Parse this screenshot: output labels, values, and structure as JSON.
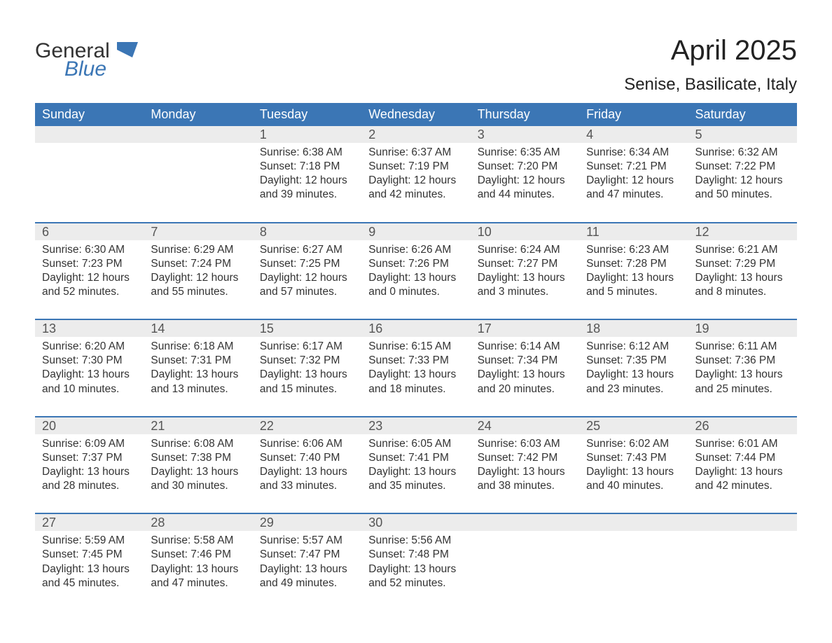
{
  "brand": {
    "word1": "General",
    "word2": "Blue",
    "icon_color": "#3b76b5"
  },
  "title": "April 2025",
  "subtitle": "Senise, Basilicate, Italy",
  "colors": {
    "header_bg": "#3b76b5",
    "header_text": "#ffffff",
    "stripe_bg": "#ececec",
    "text": "#333333",
    "rule": "#3b76b5",
    "page_bg": "#ffffff"
  },
  "fonts": {
    "family": "Arial, Helvetica, sans-serif",
    "title_size_pt": 30,
    "subtitle_size_pt": 18,
    "dayhead_size_pt": 14,
    "daynum_size_pt": 14,
    "body_size_pt": 12
  },
  "day_headers": [
    "Sunday",
    "Monday",
    "Tuesday",
    "Wednesday",
    "Thursday",
    "Friday",
    "Saturday"
  ],
  "weeks": [
    [
      null,
      null,
      {
        "n": "1",
        "sunrise": "6:38 AM",
        "sunset": "7:18 PM",
        "daylight_h": 12,
        "daylight_m": 39
      },
      {
        "n": "2",
        "sunrise": "6:37 AM",
        "sunset": "7:19 PM",
        "daylight_h": 12,
        "daylight_m": 42
      },
      {
        "n": "3",
        "sunrise": "6:35 AM",
        "sunset": "7:20 PM",
        "daylight_h": 12,
        "daylight_m": 44
      },
      {
        "n": "4",
        "sunrise": "6:34 AM",
        "sunset": "7:21 PM",
        "daylight_h": 12,
        "daylight_m": 47
      },
      {
        "n": "5",
        "sunrise": "6:32 AM",
        "sunset": "7:22 PM",
        "daylight_h": 12,
        "daylight_m": 50
      }
    ],
    [
      {
        "n": "6",
        "sunrise": "6:30 AM",
        "sunset": "7:23 PM",
        "daylight_h": 12,
        "daylight_m": 52
      },
      {
        "n": "7",
        "sunrise": "6:29 AM",
        "sunset": "7:24 PM",
        "daylight_h": 12,
        "daylight_m": 55
      },
      {
        "n": "8",
        "sunrise": "6:27 AM",
        "sunset": "7:25 PM",
        "daylight_h": 12,
        "daylight_m": 57
      },
      {
        "n": "9",
        "sunrise": "6:26 AM",
        "sunset": "7:26 PM",
        "daylight_h": 13,
        "daylight_m": 0
      },
      {
        "n": "10",
        "sunrise": "6:24 AM",
        "sunset": "7:27 PM",
        "daylight_h": 13,
        "daylight_m": 3
      },
      {
        "n": "11",
        "sunrise": "6:23 AM",
        "sunset": "7:28 PM",
        "daylight_h": 13,
        "daylight_m": 5
      },
      {
        "n": "12",
        "sunrise": "6:21 AM",
        "sunset": "7:29 PM",
        "daylight_h": 13,
        "daylight_m": 8
      }
    ],
    [
      {
        "n": "13",
        "sunrise": "6:20 AM",
        "sunset": "7:30 PM",
        "daylight_h": 13,
        "daylight_m": 10
      },
      {
        "n": "14",
        "sunrise": "6:18 AM",
        "sunset": "7:31 PM",
        "daylight_h": 13,
        "daylight_m": 13
      },
      {
        "n": "15",
        "sunrise": "6:17 AM",
        "sunset": "7:32 PM",
        "daylight_h": 13,
        "daylight_m": 15
      },
      {
        "n": "16",
        "sunrise": "6:15 AM",
        "sunset": "7:33 PM",
        "daylight_h": 13,
        "daylight_m": 18
      },
      {
        "n": "17",
        "sunrise": "6:14 AM",
        "sunset": "7:34 PM",
        "daylight_h": 13,
        "daylight_m": 20
      },
      {
        "n": "18",
        "sunrise": "6:12 AM",
        "sunset": "7:35 PM",
        "daylight_h": 13,
        "daylight_m": 23
      },
      {
        "n": "19",
        "sunrise": "6:11 AM",
        "sunset": "7:36 PM",
        "daylight_h": 13,
        "daylight_m": 25
      }
    ],
    [
      {
        "n": "20",
        "sunrise": "6:09 AM",
        "sunset": "7:37 PM",
        "daylight_h": 13,
        "daylight_m": 28
      },
      {
        "n": "21",
        "sunrise": "6:08 AM",
        "sunset": "7:38 PM",
        "daylight_h": 13,
        "daylight_m": 30
      },
      {
        "n": "22",
        "sunrise": "6:06 AM",
        "sunset": "7:40 PM",
        "daylight_h": 13,
        "daylight_m": 33
      },
      {
        "n": "23",
        "sunrise": "6:05 AM",
        "sunset": "7:41 PM",
        "daylight_h": 13,
        "daylight_m": 35
      },
      {
        "n": "24",
        "sunrise": "6:03 AM",
        "sunset": "7:42 PM",
        "daylight_h": 13,
        "daylight_m": 38
      },
      {
        "n": "25",
        "sunrise": "6:02 AM",
        "sunset": "7:43 PM",
        "daylight_h": 13,
        "daylight_m": 40
      },
      {
        "n": "26",
        "sunrise": "6:01 AM",
        "sunset": "7:44 PM",
        "daylight_h": 13,
        "daylight_m": 42
      }
    ],
    [
      {
        "n": "27",
        "sunrise": "5:59 AM",
        "sunset": "7:45 PM",
        "daylight_h": 13,
        "daylight_m": 45
      },
      {
        "n": "28",
        "sunrise": "5:58 AM",
        "sunset": "7:46 PM",
        "daylight_h": 13,
        "daylight_m": 47
      },
      {
        "n": "29",
        "sunrise": "5:57 AM",
        "sunset": "7:47 PM",
        "daylight_h": 13,
        "daylight_m": 49
      },
      {
        "n": "30",
        "sunrise": "5:56 AM",
        "sunset": "7:48 PM",
        "daylight_h": 13,
        "daylight_m": 52
      },
      null,
      null,
      null
    ]
  ],
  "labels": {
    "sunrise": "Sunrise:",
    "sunset": "Sunset:",
    "daylight_prefix": "Daylight:",
    "hours_word": "hours",
    "and_word": "and",
    "minutes_word": "minutes."
  }
}
